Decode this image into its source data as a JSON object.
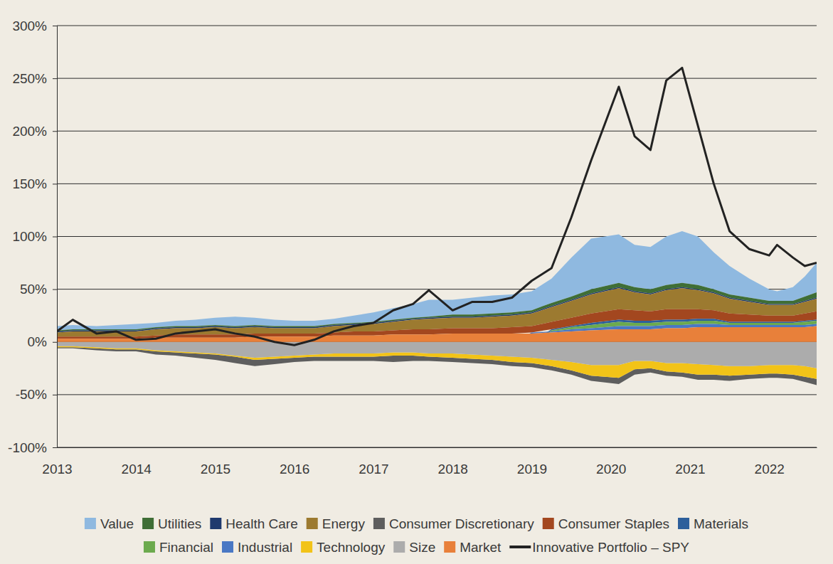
{
  "chart_data": {
    "type": "area",
    "stacked": true,
    "grid": true,
    "legend": "bottom",
    "x": [
      2013,
      2013.2,
      2013.5,
      2013.75,
      2014,
      2014.25,
      2014.5,
      2014.75,
      2015,
      2015.25,
      2015.5,
      2015.75,
      2016,
      2016.25,
      2016.5,
      2016.75,
      2017,
      2017.25,
      2017.5,
      2017.7,
      2018,
      2018.25,
      2018.5,
      2018.75,
      2019,
      2019.25,
      2019.5,
      2019.75,
      2020.1,
      2020.3,
      2020.5,
      2020.7,
      2020.9,
      2021.1,
      2021.3,
      2021.5,
      2021.75,
      2022,
      2022.1,
      2022.3,
      2022.45,
      2022.6
    ],
    "xlim": [
      2013,
      2022.6
    ],
    "xticks": [
      2013,
      2014,
      2015,
      2016,
      2017,
      2018,
      2019,
      2020,
      2021,
      2022
    ],
    "ylim": [
      -100,
      300
    ],
    "yticks": [
      {
        "value": -100,
        "label": "-100%"
      },
      {
        "value": -50,
        "label": "-50%"
      },
      {
        "value": 0,
        "label": "0%"
      },
      {
        "value": 50,
        "label": "50%"
      },
      {
        "value": 100,
        "label": "100%"
      },
      {
        "value": 150,
        "label": "150%"
      },
      {
        "value": 200,
        "label": "200%"
      },
      {
        "value": 250,
        "label": "250%"
      },
      {
        "value": 300,
        "label": "300%"
      }
    ],
    "series": [
      {
        "name": "Value",
        "color": "#8fb9e0",
        "values": [
          4,
          4,
          3,
          4,
          5,
          4,
          5,
          6,
          7,
          9,
          7,
          6,
          5,
          5,
          5,
          7,
          9,
          11,
          13,
          16,
          14,
          16,
          17,
          17,
          18,
          23,
          37,
          48,
          46,
          40,
          40,
          46,
          49,
          46,
          35,
          27,
          18,
          11,
          9,
          13,
          19,
          28
        ]
      },
      {
        "name": "Utilities",
        "color": "#3f6e36",
        "values": [
          1,
          1,
          1,
          1,
          1,
          1,
          1,
          1,
          1,
          1,
          1,
          1,
          1,
          1,
          1,
          1,
          1,
          1,
          1,
          1,
          2,
          2,
          2,
          2,
          2,
          3,
          3,
          4,
          4,
          4,
          4,
          4,
          4,
          4,
          3,
          3,
          3,
          3,
          3,
          3,
          4,
          5
        ]
      },
      {
        "name": "Health Care",
        "color": "#1f3a6e",
        "values": [
          1,
          1,
          1,
          1,
          1,
          1,
          1,
          1,
          1,
          1,
          1,
          1,
          1,
          1,
          1,
          1,
          1,
          1,
          1,
          1,
          1,
          1,
          1,
          1,
          1,
          1,
          1,
          1,
          1,
          1,
          1,
          1,
          1,
          1,
          1,
          1,
          1,
          1,
          1,
          1,
          1,
          1
        ]
      },
      {
        "name": "Energy",
        "color": "#9c7a30",
        "values": [
          4,
          5,
          5,
          5,
          5,
          6,
          6,
          6,
          7,
          6,
          6,
          5,
          5,
          5,
          6,
          6,
          7,
          8,
          9,
          10,
          10,
          10,
          11,
          11,
          12,
          14,
          16,
          18,
          20,
          17,
          16,
          18,
          20,
          18,
          16,
          14,
          12,
          10,
          10,
          10,
          11,
          12
        ]
      },
      {
        "name": "Consumer Discretionary",
        "color": "#5e5e5e",
        "values": [
          -1,
          -1,
          -2,
          -2,
          -2,
          -3,
          -3,
          -4,
          -5,
          -6,
          -6,
          -5,
          -4,
          -4,
          -4,
          -4,
          -4,
          -6,
          -5,
          -4,
          -4,
          -4,
          -4,
          -4,
          -4,
          -4,
          -4,
          -5,
          -6,
          -5,
          -4,
          -4,
          -4,
          -5,
          -5,
          -5,
          -4,
          -4,
          -4,
          -4,
          -5,
          -6
        ]
      },
      {
        "name": "Consumer Staples",
        "color": "#a3471f",
        "values": [
          2,
          2,
          2,
          2,
          2,
          2,
          3,
          3,
          3,
          3,
          3,
          3,
          3,
          3,
          3,
          4,
          4,
          4,
          5,
          5,
          5,
          5,
          5,
          6,
          6,
          7,
          8,
          9,
          10,
          10,
          9,
          10,
          10,
          9,
          8,
          8,
          7,
          6,
          6,
          6,
          7,
          8
        ]
      },
      {
        "name": "Materials",
        "color": "#2d5f9b",
        "values": [
          0,
          0,
          0,
          0,
          0,
          0,
          0,
          0,
          0,
          0,
          0,
          0,
          0,
          0,
          0,
          0,
          0,
          0,
          0,
          0,
          0,
          0,
          0,
          0,
          0,
          1,
          1,
          2,
          2,
          2,
          2,
          2,
          2,
          2,
          2,
          1,
          1,
          1,
          1,
          1,
          1,
          1
        ]
      },
      {
        "name": "Financial",
        "color": "#6caa4e",
        "values": [
          0,
          0,
          0,
          0,
          0,
          0,
          0,
          0,
          0,
          0,
          0,
          0,
          0,
          0,
          0,
          0,
          0,
          0,
          0,
          0,
          0,
          0,
          0,
          0,
          0,
          1,
          2,
          3,
          4,
          3,
          3,
          3,
          3,
          3,
          3,
          2,
          2,
          2,
          2,
          2,
          3,
          3
        ]
      },
      {
        "name": "Industrial",
        "color": "#4a78c4",
        "values": [
          0,
          0,
          0,
          0,
          0,
          0,
          0,
          0,
          0,
          0,
          0,
          0,
          0,
          0,
          0,
          0,
          0,
          0,
          0,
          0,
          0,
          0,
          0,
          0,
          1,
          1,
          2,
          2,
          3,
          3,
          3,
          3,
          3,
          3,
          3,
          2,
          2,
          2,
          2,
          2,
          2,
          2
        ]
      },
      {
        "name": "Technology",
        "color": "#f2c318",
        "values": [
          -1,
          -1,
          -1,
          -1,
          -1,
          -1,
          -1,
          -1,
          -1,
          -1,
          -2,
          -2,
          -2,
          -2,
          -3,
          -3,
          -3,
          -3,
          -3,
          -3,
          -4,
          -4,
          -4,
          -5,
          -5,
          -6,
          -8,
          -10,
          -12,
          -8,
          -7,
          -8,
          -9,
          -10,
          -9,
          -9,
          -8,
          -8,
          -8,
          -9,
          -10,
          -10
        ]
      },
      {
        "name": "Size",
        "color": "#acacac",
        "values": [
          -4,
          -4,
          -5,
          -6,
          -6,
          -8,
          -9,
          -10,
          -11,
          -13,
          -15,
          -14,
          -13,
          -12,
          -11,
          -11,
          -11,
          -10,
          -10,
          -11,
          -11,
          -12,
          -13,
          -14,
          -15,
          -17,
          -19,
          -22,
          -22,
          -18,
          -18,
          -20,
          -20,
          -21,
          -22,
          -23,
          -23,
          -22,
          -22,
          -22,
          -23,
          -25
        ]
      },
      {
        "name": "Market",
        "color": "#e8803a",
        "values": [
          3,
          3,
          3,
          3,
          3,
          4,
          4,
          4,
          4,
          4,
          5,
          5,
          5,
          5,
          6,
          6,
          6,
          7,
          7,
          7,
          8,
          8,
          8,
          8,
          8,
          9,
          10,
          11,
          12,
          12,
          12,
          13,
          13,
          14,
          14,
          14,
          14,
          14,
          14,
          14,
          14,
          15
        ]
      },
      {
        "name": "Innovative Portfolio – SPY",
        "type": "line",
        "color": "#222222",
        "values": [
          10,
          21,
          8,
          10,
          2,
          3,
          8,
          10,
          12,
          8,
          5,
          0,
          -3,
          2,
          10,
          15,
          18,
          30,
          36,
          49,
          30,
          38,
          38,
          42,
          58,
          70,
          118,
          172,
          242,
          195,
          182,
          248,
          260,
          205,
          150,
          105,
          88,
          82,
          92,
          80,
          72,
          75
        ]
      }
    ]
  }
}
